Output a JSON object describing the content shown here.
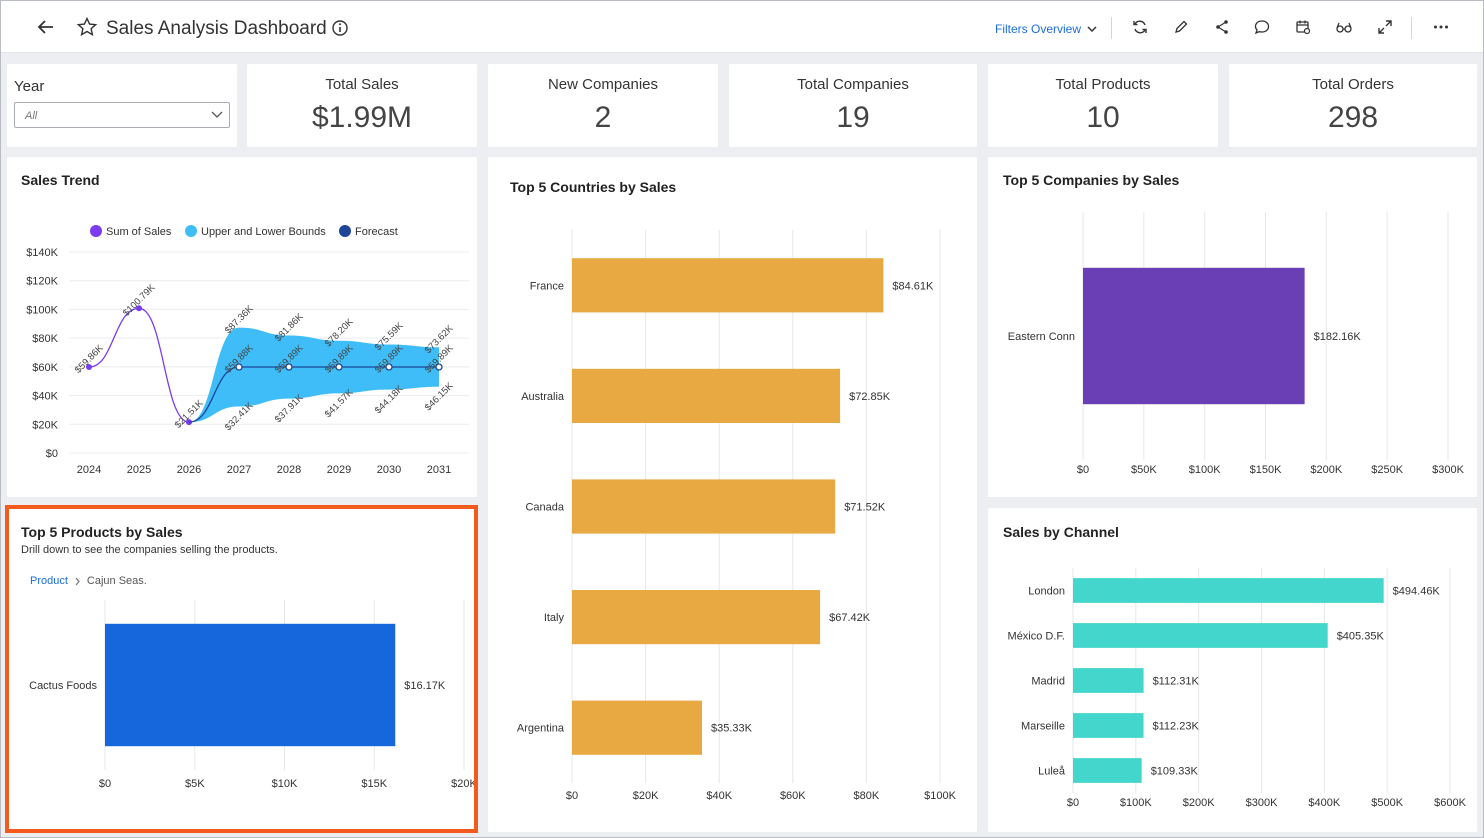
{
  "header": {
    "title": "Sales Analysis Dashboard",
    "filters_label": "Filters Overview",
    "tools": [
      "refresh-icon",
      "edit-icon",
      "share-icon",
      "comment-icon",
      "calendar-icon",
      "glasses-icon",
      "expand-icon",
      "more-icon"
    ]
  },
  "year_filter": {
    "label": "Year",
    "value": "All"
  },
  "kpis": [
    {
      "label": "Total Sales",
      "value": "$1.99M"
    },
    {
      "label": "New Companies",
      "value": "2"
    },
    {
      "label": "Total Companies",
      "value": "19"
    },
    {
      "label": "Total Products",
      "value": "10"
    },
    {
      "label": "Total Orders",
      "value": "298"
    }
  ],
  "colors": {
    "trend": "#7a3cf0",
    "bounds": "#3fbdf8",
    "forecast": "#1f4597",
    "countries": "#e8a942",
    "companies": "#6a3fb5",
    "products": "#1667dc",
    "channel": "#42d6cc",
    "highlight": "#f25a1e",
    "link": "#1a6ed8"
  },
  "products_panel": {
    "subtitle": "Drill down to see the companies selling the products.",
    "breadcrumb_root": "Product",
    "breadcrumb_current": "Cajun Seas."
  },
  "chart_data": [
    {
      "id": "sales-trend",
      "type": "line",
      "title": "Sales Trend",
      "legend": [
        "Sum of Sales",
        "Upper and Lower Bounds",
        "Forecast"
      ],
      "legend_placement": "top",
      "x": [
        "2024",
        "2025",
        "2026",
        "2027",
        "2028",
        "2029",
        "2030",
        "2031"
      ],
      "y_ticks": [
        "$0",
        "$20K",
        "$40K",
        "$60K",
        "$80K",
        "$100K",
        "$120K",
        "$140K"
      ],
      "ylim": [
        0,
        140000
      ],
      "series": [
        {
          "name": "Sum of Sales",
          "values": [
            59860,
            100790,
            21510,
            null,
            null,
            null,
            null,
            null
          ],
          "labels": [
            "$59.86K",
            "$100.79K",
            "$21.51K",
            "",
            "",
            "",
            "",
            ""
          ]
        },
        {
          "name": "Forecast",
          "values": [
            null,
            null,
            21510,
            59880,
            59890,
            59890,
            59890,
            59890
          ],
          "labels": [
            "",
            "",
            "",
            "$59.88K",
            "$59.89K",
            "$59.89K",
            "$59.89K",
            "$59.89K"
          ]
        },
        {
          "name": "Upper and Lower Bounds",
          "upper": [
            null,
            null,
            21510,
            87360,
            81860,
            78200,
            75590,
            73620
          ],
          "lower": [
            null,
            null,
            21510,
            32410,
            37910,
            41570,
            44180,
            46150
          ],
          "upper_labels": [
            "",
            "",
            "",
            "$87.36K",
            "$81.86K",
            "$78.20K",
            "$75.59K",
            "$73.62K"
          ],
          "lower_labels": [
            "",
            "",
            "",
            "$32.41K",
            "$37.91K",
            "$41.57K",
            "$44.18K",
            "$46.15K"
          ]
        }
      ],
      "grid": true
    },
    {
      "id": "top-countries",
      "type": "bar",
      "title": "Top 5 Countries by Sales",
      "orientation": "horizontal",
      "categories": [
        "France",
        "Australia",
        "Canada",
        "Italy",
        "Argentina"
      ],
      "values": [
        84610,
        72850,
        71520,
        67420,
        35330
      ],
      "labels": [
        "$84.61K",
        "$72.85K",
        "$71.52K",
        "$67.42K",
        "$35.33K"
      ],
      "x_ticks": [
        "$0",
        "$20K",
        "$40K",
        "$60K",
        "$80K",
        "$100K"
      ],
      "xlim": [
        0,
        100000
      ],
      "grid": true
    },
    {
      "id": "top-companies",
      "type": "bar",
      "title": "Top 5 Companies by Sales",
      "orientation": "horizontal",
      "categories": [
        "Eastern Conn"
      ],
      "values": [
        182160
      ],
      "labels": [
        "$182.16K"
      ],
      "x_ticks": [
        "$0",
        "$50K",
        "$100K",
        "$150K",
        "$200K",
        "$250K",
        "$300K"
      ],
      "xlim": [
        0,
        300000
      ],
      "grid": true
    },
    {
      "id": "top-products",
      "type": "bar",
      "title": "Top 5 Products by Sales",
      "orientation": "horizontal",
      "categories": [
        "Cactus Foods"
      ],
      "values": [
        16170
      ],
      "labels": [
        "$16.17K"
      ],
      "x_ticks": [
        "$0",
        "$5K",
        "$10K",
        "$15K",
        "$20K"
      ],
      "xlim": [
        0,
        20000
      ],
      "grid": true
    },
    {
      "id": "sales-channel",
      "type": "bar",
      "title": "Sales by Channel",
      "orientation": "horizontal",
      "categories": [
        "London",
        "México D.F.",
        "Madrid",
        "Marseille",
        "Luleå"
      ],
      "values": [
        494460,
        405350,
        112310,
        112230,
        109330
      ],
      "labels": [
        "$494.46K",
        "$405.35K",
        "$112.31K",
        "$112.23K",
        "$109.33K"
      ],
      "x_ticks": [
        "$0",
        "$100K",
        "$200K",
        "$300K",
        "$400K",
        "$500K",
        "$600K"
      ],
      "xlim": [
        0,
        600000
      ],
      "grid": true
    }
  ]
}
